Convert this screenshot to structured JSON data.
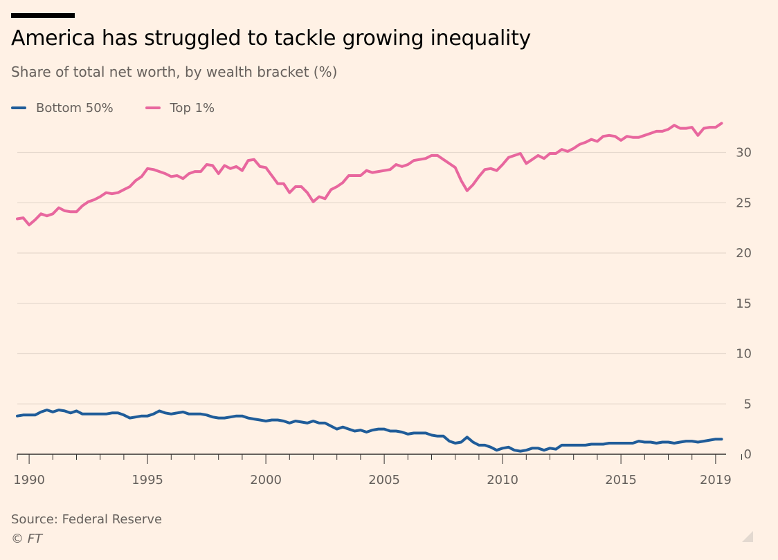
{
  "title": "America has struggled to tackle growing inequality",
  "subtitle": "Share of total net worth, by wealth bracket (%)",
  "source": "Source: Federal Reserve",
  "credit": "© FT",
  "colors": {
    "background": "#fff1e5",
    "bottom50": "#1f5c99",
    "top1": "#e8679e",
    "grid": "#e6d9ce",
    "axis": "#33302e",
    "text": "#66605c"
  },
  "chart_data": {
    "type": "line",
    "title": "America has struggled to tackle growing inequality",
    "subtitle": "Share of total net worth, by wealth bracket (%)",
    "xlim": [
      1989.5,
      2020.1
    ],
    "ylim": [
      0,
      33
    ],
    "yticks": [
      0,
      5,
      10,
      15,
      20,
      25,
      30
    ],
    "xticks": [
      1990,
      1995,
      2000,
      2005,
      2010,
      2015,
      2019
    ],
    "legend_position": "top-left",
    "grid": "horizontal",
    "series": [
      {
        "name": "Bottom 50%",
        "color": "#1f5c99",
        "points": [
          [
            1989.5,
            3.8
          ],
          [
            1989.75,
            3.9
          ],
          [
            1990.0,
            3.9
          ],
          [
            1990.25,
            3.9
          ],
          [
            1990.5,
            4.2
          ],
          [
            1990.75,
            4.4
          ],
          [
            1991.0,
            4.2
          ],
          [
            1991.25,
            4.4
          ],
          [
            1991.5,
            4.3
          ],
          [
            1991.75,
            4.1
          ],
          [
            1992.0,
            4.3
          ],
          [
            1992.25,
            4.0
          ],
          [
            1992.5,
            4.0
          ],
          [
            1992.75,
            4.0
          ],
          [
            1993.0,
            4.0
          ],
          [
            1993.25,
            4.0
          ],
          [
            1993.5,
            4.1
          ],
          [
            1993.75,
            4.1
          ],
          [
            1994.0,
            3.9
          ],
          [
            1994.25,
            3.6
          ],
          [
            1994.5,
            3.7
          ],
          [
            1994.75,
            3.8
          ],
          [
            1995.0,
            3.8
          ],
          [
            1995.25,
            4.0
          ],
          [
            1995.5,
            4.3
          ],
          [
            1995.75,
            4.1
          ],
          [
            1996.0,
            4.0
          ],
          [
            1996.25,
            4.1
          ],
          [
            1996.5,
            4.2
          ],
          [
            1996.75,
            4.0
          ],
          [
            1997.0,
            4.0
          ],
          [
            1997.25,
            4.0
          ],
          [
            1997.5,
            3.9
          ],
          [
            1997.75,
            3.7
          ],
          [
            1998.0,
            3.6
          ],
          [
            1998.25,
            3.6
          ],
          [
            1998.5,
            3.7
          ],
          [
            1998.75,
            3.8
          ],
          [
            1999.0,
            3.8
          ],
          [
            1999.25,
            3.6
          ],
          [
            1999.5,
            3.5
          ],
          [
            1999.75,
            3.4
          ],
          [
            2000.0,
            3.3
          ],
          [
            2000.25,
            3.4
          ],
          [
            2000.5,
            3.4
          ],
          [
            2000.75,
            3.3
          ],
          [
            2001.0,
            3.1
          ],
          [
            2001.25,
            3.3
          ],
          [
            2001.5,
            3.2
          ],
          [
            2001.75,
            3.1
          ],
          [
            2002.0,
            3.3
          ],
          [
            2002.25,
            3.1
          ],
          [
            2002.5,
            3.1
          ],
          [
            2002.75,
            2.8
          ],
          [
            2003.0,
            2.5
          ],
          [
            2003.25,
            2.7
          ],
          [
            2003.5,
            2.5
          ],
          [
            2003.75,
            2.3
          ],
          [
            2004.0,
            2.4
          ],
          [
            2004.25,
            2.2
          ],
          [
            2004.5,
            2.4
          ],
          [
            2004.75,
            2.5
          ],
          [
            2005.0,
            2.5
          ],
          [
            2005.25,
            2.3
          ],
          [
            2005.5,
            2.3
          ],
          [
            2005.75,
            2.2
          ],
          [
            2006.0,
            2.0
          ],
          [
            2006.25,
            2.1
          ],
          [
            2006.5,
            2.1
          ],
          [
            2006.75,
            2.1
          ],
          [
            2007.0,
            1.9
          ],
          [
            2007.25,
            1.8
          ],
          [
            2007.5,
            1.8
          ],
          [
            2007.75,
            1.3
          ],
          [
            2008.0,
            1.1
          ],
          [
            2008.25,
            1.2
          ],
          [
            2008.5,
            1.7
          ],
          [
            2008.75,
            1.2
          ],
          [
            2009.0,
            0.9
          ],
          [
            2009.25,
            0.9
          ],
          [
            2009.5,
            0.7
          ],
          [
            2009.75,
            0.4
          ],
          [
            2010.0,
            0.6
          ],
          [
            2010.25,
            0.7
          ],
          [
            2010.5,
            0.4
          ],
          [
            2010.75,
            0.3
          ],
          [
            2011.0,
            0.4
          ],
          [
            2011.25,
            0.6
          ],
          [
            2011.5,
            0.6
          ],
          [
            2011.75,
            0.4
          ],
          [
            2012.0,
            0.6
          ],
          [
            2012.25,
            0.5
          ],
          [
            2012.5,
            0.9
          ],
          [
            2012.75,
            0.9
          ],
          [
            2013.0,
            0.9
          ],
          [
            2013.25,
            0.9
          ],
          [
            2013.5,
            0.9
          ],
          [
            2013.75,
            1.0
          ],
          [
            2014.0,
            1.0
          ],
          [
            2014.25,
            1.0
          ],
          [
            2014.5,
            1.1
          ],
          [
            2014.75,
            1.1
          ],
          [
            2015.0,
            1.1
          ],
          [
            2015.25,
            1.1
          ],
          [
            2015.5,
            1.1
          ],
          [
            2015.75,
            1.3
          ],
          [
            2016.0,
            1.2
          ],
          [
            2016.25,
            1.2
          ],
          [
            2016.5,
            1.1
          ],
          [
            2016.75,
            1.2
          ],
          [
            2017.0,
            1.2
          ],
          [
            2017.25,
            1.1
          ],
          [
            2017.5,
            1.2
          ],
          [
            2017.75,
            1.3
          ],
          [
            2018.0,
            1.3
          ],
          [
            2018.25,
            1.2
          ],
          [
            2018.5,
            1.3
          ],
          [
            2018.75,
            1.4
          ],
          [
            2019.0,
            1.5
          ],
          [
            2019.25,
            1.5
          ]
        ]
      },
      {
        "name": "Top 1%",
        "color": "#e8679e",
        "points": [
          [
            1989.5,
            23.4
          ],
          [
            1989.75,
            23.5
          ],
          [
            1990.0,
            22.8
          ],
          [
            1990.25,
            23.3
          ],
          [
            1990.5,
            23.9
          ],
          [
            1990.75,
            23.7
          ],
          [
            1991.0,
            23.9
          ],
          [
            1991.25,
            24.5
          ],
          [
            1991.5,
            24.2
          ],
          [
            1991.75,
            24.1
          ],
          [
            1992.0,
            24.1
          ],
          [
            1992.25,
            24.7
          ],
          [
            1992.5,
            25.1
          ],
          [
            1992.75,
            25.3
          ],
          [
            1993.0,
            25.6
          ],
          [
            1993.25,
            26.0
          ],
          [
            1993.5,
            25.9
          ],
          [
            1993.75,
            26.0
          ],
          [
            1994.0,
            26.3
          ],
          [
            1994.25,
            26.6
          ],
          [
            1994.5,
            27.2
          ],
          [
            1994.75,
            27.6
          ],
          [
            1995.0,
            28.4
          ],
          [
            1995.25,
            28.3
          ],
          [
            1995.5,
            28.1
          ],
          [
            1995.75,
            27.9
          ],
          [
            1996.0,
            27.6
          ],
          [
            1996.25,
            27.7
          ],
          [
            1996.5,
            27.4
          ],
          [
            1996.75,
            27.9
          ],
          [
            1997.0,
            28.1
          ],
          [
            1997.25,
            28.1
          ],
          [
            1997.5,
            28.8
          ],
          [
            1997.75,
            28.7
          ],
          [
            1998.0,
            27.9
          ],
          [
            1998.25,
            28.7
          ],
          [
            1998.5,
            28.4
          ],
          [
            1998.75,
            28.6
          ],
          [
            1999.0,
            28.2
          ],
          [
            1999.25,
            29.2
          ],
          [
            1999.5,
            29.3
          ],
          [
            1999.75,
            28.6
          ],
          [
            2000.0,
            28.5
          ],
          [
            2000.25,
            27.7
          ],
          [
            2000.5,
            26.9
          ],
          [
            2000.75,
            26.9
          ],
          [
            2001.0,
            26.0
          ],
          [
            2001.25,
            26.6
          ],
          [
            2001.5,
            26.6
          ],
          [
            2001.75,
            26.0
          ],
          [
            2002.0,
            25.1
          ],
          [
            2002.25,
            25.6
          ],
          [
            2002.5,
            25.4
          ],
          [
            2002.75,
            26.3
          ],
          [
            2003.0,
            26.6
          ],
          [
            2003.25,
            27.0
          ],
          [
            2003.5,
            27.7
          ],
          [
            2003.75,
            27.7
          ],
          [
            2004.0,
            27.7
          ],
          [
            2004.25,
            28.2
          ],
          [
            2004.5,
            28.0
          ],
          [
            2004.75,
            28.1
          ],
          [
            2005.0,
            28.2
          ],
          [
            2005.25,
            28.3
          ],
          [
            2005.5,
            28.8
          ],
          [
            2005.75,
            28.6
          ],
          [
            2006.0,
            28.8
          ],
          [
            2006.25,
            29.2
          ],
          [
            2006.5,
            29.3
          ],
          [
            2006.75,
            29.4
          ],
          [
            2007.0,
            29.7
          ],
          [
            2007.25,
            29.7
          ],
          [
            2007.5,
            29.3
          ],
          [
            2007.75,
            28.9
          ],
          [
            2008.0,
            28.5
          ],
          [
            2008.25,
            27.2
          ],
          [
            2008.5,
            26.2
          ],
          [
            2008.75,
            26.8
          ],
          [
            2009.0,
            27.6
          ],
          [
            2009.25,
            28.3
          ],
          [
            2009.5,
            28.4
          ],
          [
            2009.75,
            28.2
          ],
          [
            2010.0,
            28.8
          ],
          [
            2010.25,
            29.5
          ],
          [
            2010.5,
            29.7
          ],
          [
            2010.75,
            29.9
          ],
          [
            2011.0,
            28.9
          ],
          [
            2011.25,
            29.3
          ],
          [
            2011.5,
            29.7
          ],
          [
            2011.75,
            29.4
          ],
          [
            2012.0,
            29.9
          ],
          [
            2012.25,
            29.9
          ],
          [
            2012.5,
            30.3
          ],
          [
            2012.75,
            30.1
          ],
          [
            2013.0,
            30.4
          ],
          [
            2013.25,
            30.8
          ],
          [
            2013.5,
            31.0
          ],
          [
            2013.75,
            31.3
          ],
          [
            2014.0,
            31.1
          ],
          [
            2014.25,
            31.6
          ],
          [
            2014.5,
            31.7
          ],
          [
            2014.75,
            31.6
          ],
          [
            2015.0,
            31.2
          ],
          [
            2015.25,
            31.6
          ],
          [
            2015.5,
            31.5
          ],
          [
            2015.75,
            31.5
          ],
          [
            2016.0,
            31.7
          ],
          [
            2016.25,
            31.9
          ],
          [
            2016.5,
            32.1
          ],
          [
            2016.75,
            32.1
          ],
          [
            2017.0,
            32.3
          ],
          [
            2017.25,
            32.7
          ],
          [
            2017.5,
            32.4
          ],
          [
            2017.75,
            32.4
          ],
          [
            2018.0,
            32.5
          ],
          [
            2018.25,
            31.7
          ],
          [
            2018.5,
            32.4
          ],
          [
            2018.75,
            32.5
          ],
          [
            2019.0,
            32.5
          ],
          [
            2019.25,
            32.9
          ]
        ]
      }
    ]
  }
}
